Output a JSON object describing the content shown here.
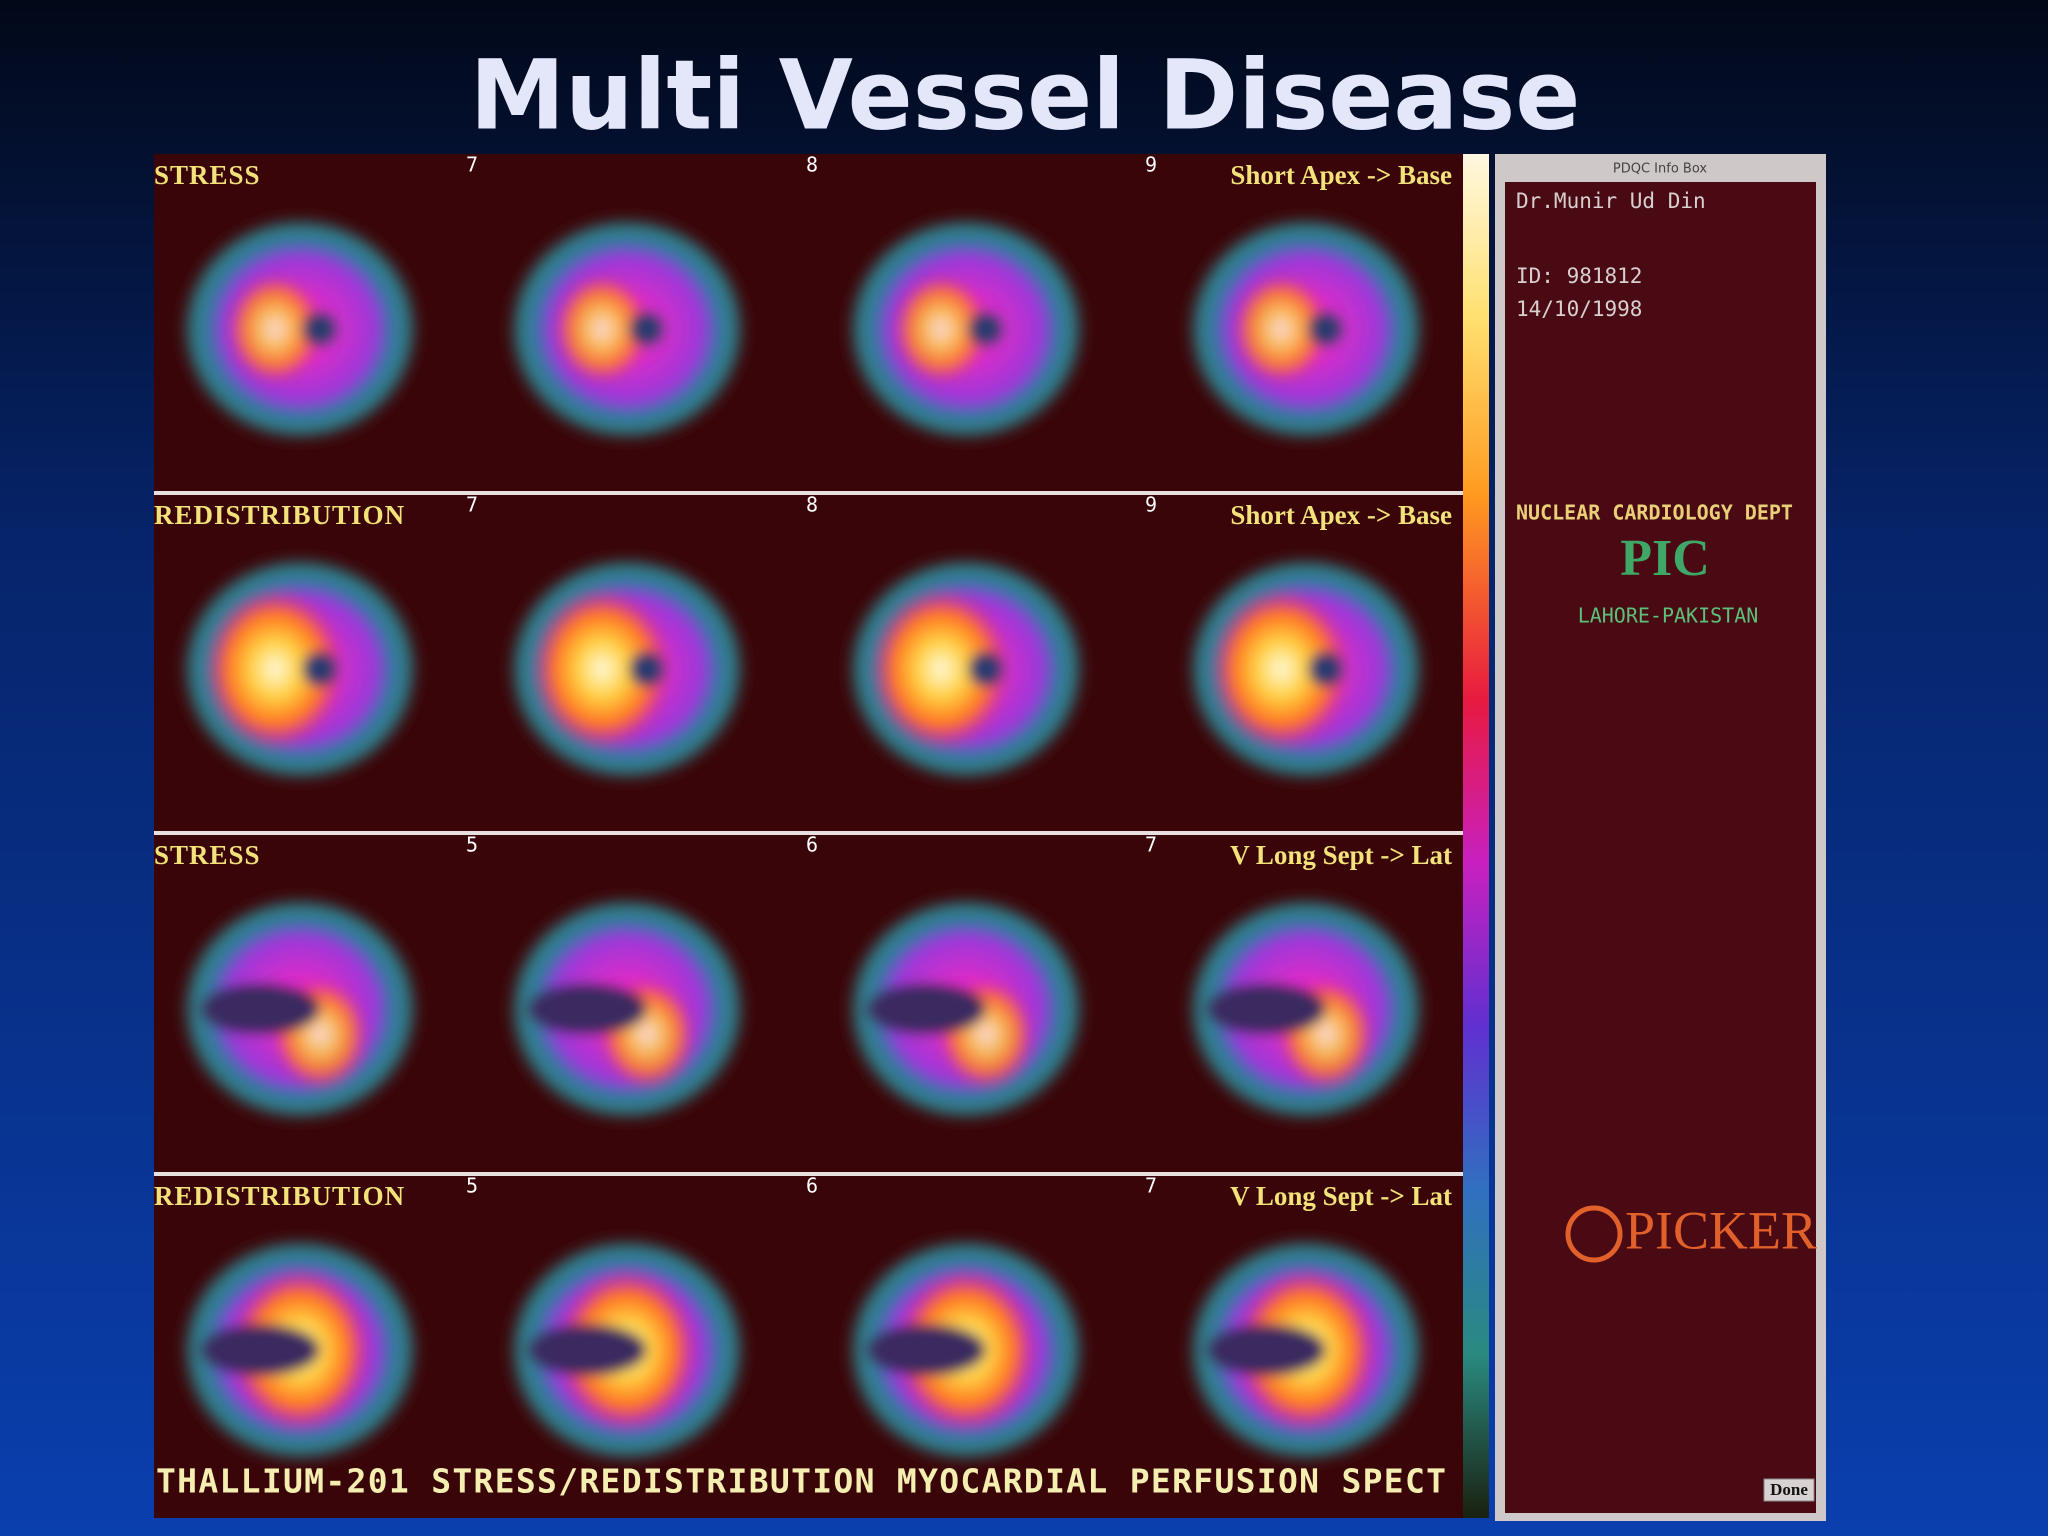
{
  "title": "Multi Vessel Disease",
  "rows": [
    {
      "label": "STRESS",
      "slices": [
        "7",
        "8",
        "9"
      ],
      "orientation": "Short Apex -> Base"
    },
    {
      "label": "REDISTRIBUTION",
      "slices": [
        "7",
        "8",
        "9"
      ],
      "orientation": "Short Apex -> Base"
    },
    {
      "label": "STRESS",
      "slices": [
        "5",
        "6",
        "7"
      ],
      "orientation": "V Long Sept -> Lat"
    },
    {
      "label": "REDISTRIBUTION",
      "slices": [
        "5",
        "6",
        "7"
      ],
      "orientation": "V Long Sept -> Lat"
    }
  ],
  "caption": "THALLIUM-201 STRESS/REDISTRIBUTION MYOCARDIAL PERFUSION SPECT",
  "info_box": {
    "header": "PDQC Info Box",
    "doctor": "Dr.Munir Ud Din",
    "id": "ID: 981812",
    "date": "14/10/1998",
    "department": "NUCLEAR CARDIOLOGY DEPT",
    "institute": "PIC",
    "location": "LAHORE-PAKISTAN",
    "logo": "PICKER",
    "button": "Done"
  }
}
